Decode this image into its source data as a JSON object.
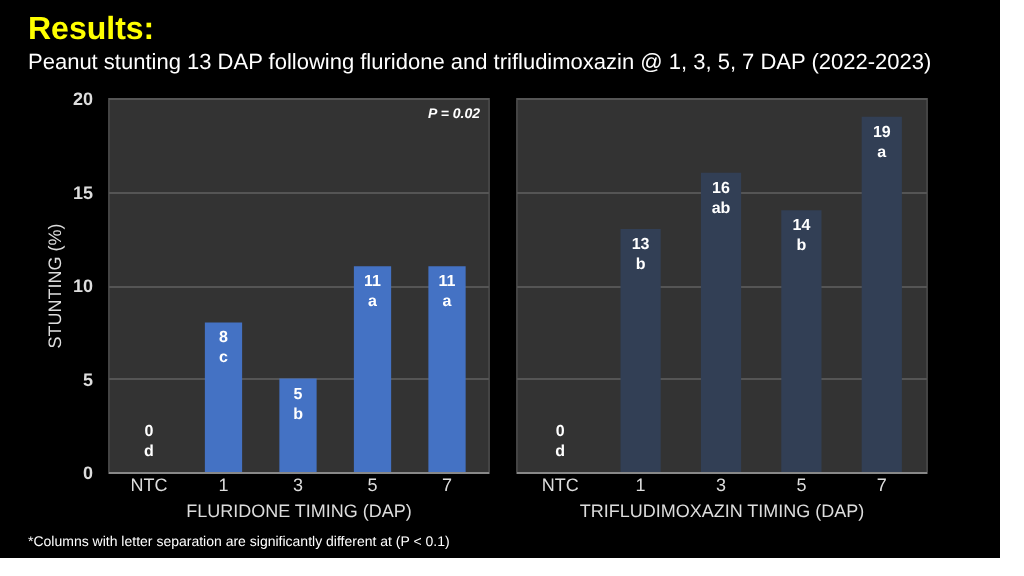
{
  "chart_data": [
    {
      "type": "bar",
      "title": "Results:",
      "subtitle": "Peanut stunting 13 DAP following fluridone and trifludimoxazin @ 1, 3, 5, 7 DAP (2022-2023)",
      "xlabel": "FLURIDONE TIMING (DAP)",
      "ylabel": "STUNTING (%)",
      "categories": [
        "NTC",
        "1",
        "3",
        "5",
        "7"
      ],
      "series": [
        {
          "color": "#4472c4",
          "values": [
            0,
            8,
            5,
            11,
            11
          ]
        }
      ],
      "value_labels": [
        "0\nd",
        "8\nc",
        "5\nb",
        "11\na",
        "11\na"
      ],
      "ylim": [
        0,
        20
      ],
      "yticks": [
        0,
        5,
        10,
        15,
        20
      ],
      "grid": "y",
      "annotations": [
        "P = 0.02"
      ]
    },
    {
      "type": "bar",
      "xlabel": "TRIFLUDIMOXAZIN TIMING (DAP)",
      "categories": [
        "NTC",
        "1",
        "3",
        "5",
        "7"
      ],
      "series": [
        {
          "color": "#323f55",
          "values": [
            0,
            13,
            16,
            14,
            19
          ]
        }
      ],
      "value_labels": [
        "0\nd",
        "13\nb",
        "16\nab",
        "14\nb",
        "19\na"
      ],
      "ylim": [
        0,
        20
      ],
      "yticks": [
        0,
        5,
        10,
        15,
        20
      ],
      "grid": "y",
      "tick_labels": "x",
      "annotations": [
        "*Columns with letter separation are significantly different at (P < 0.1)"
      ]
    }
  ]
}
